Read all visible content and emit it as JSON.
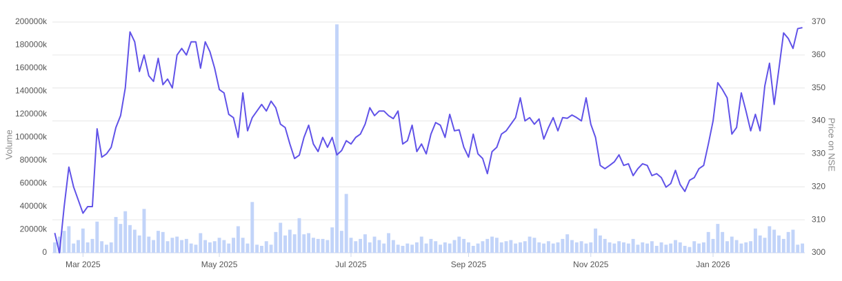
{
  "chart_data": {
    "type": "combo",
    "y_label": "Volume",
    "y2_label": "Price on NSE",
    "grid": "y2",
    "ylim": [
      0,
      200000
    ],
    "yticks": [
      0,
      {
        "value": 20000,
        "label": "20000k"
      },
      {
        "value": 40000,
        "label": "40000k"
      },
      {
        "value": 60000,
        "label": "60000k"
      },
      {
        "value": 80000,
        "label": "80000k"
      },
      {
        "value": 100000,
        "label": "100000k"
      },
      {
        "value": 120000,
        "label": "120000k"
      },
      {
        "value": 140000,
        "label": "140000k"
      },
      {
        "value": 160000,
        "label": "160000k"
      },
      {
        "value": 180000,
        "label": "180000k"
      },
      {
        "value": 200000,
        "label": "200000k"
      }
    ],
    "y2lim": [
      300,
      370
    ],
    "y2ticks": [
      300,
      310,
      320,
      330,
      340,
      350,
      360,
      370
    ],
    "categories": [
      null,
      null,
      null,
      null,
      null,
      null,
      "Mar 2025",
      null,
      null,
      null,
      null,
      null,
      null,
      null,
      null,
      null,
      null,
      null,
      null,
      null,
      null,
      null,
      null,
      null,
      null,
      null,
      null,
      null,
      null,
      null,
      null,
      null,
      null,
      null,
      null,
      "May 2025",
      null,
      null,
      null,
      null,
      null,
      null,
      null,
      null,
      null,
      null,
      null,
      null,
      null,
      null,
      null,
      null,
      null,
      null,
      null,
      null,
      null,
      null,
      null,
      null,
      null,
      null,
      null,
      "Jul 2025",
      null,
      null,
      null,
      null,
      null,
      null,
      null,
      null,
      null,
      null,
      null,
      null,
      null,
      null,
      null,
      null,
      null,
      null,
      null,
      null,
      null,
      null,
      null,
      null,
      "Sep 2025",
      null,
      null,
      null,
      null,
      null,
      null,
      null,
      null,
      null,
      null,
      null,
      null,
      null,
      null,
      null,
      null,
      null,
      null,
      null,
      null,
      null,
      null,
      null,
      null,
      null,
      "Nov 2025",
      null,
      null,
      null,
      null,
      null,
      null,
      null,
      null,
      null,
      null,
      null,
      null,
      null,
      null,
      null,
      null,
      null,
      null,
      null,
      null,
      null,
      null,
      null,
      null,
      null,
      "Jan 2026",
      null,
      null,
      null,
      null,
      null,
      null,
      null,
      null,
      null,
      null,
      null,
      null,
      null,
      null,
      null,
      null,
      null,
      null,
      null
    ],
    "series": [
      {
        "type": "bar",
        "color": "#c2d4f9",
        "values": [
          9000,
          14000,
          19000,
          23000,
          8000,
          11000,
          21000,
          9000,
          12000,
          27000,
          10000,
          7000,
          9000,
          31000,
          25000,
          36000,
          24000,
          20000,
          15000,
          38000,
          14000,
          11000,
          19000,
          18000,
          10000,
          13000,
          14000,
          11000,
          12000,
          8000,
          7000,
          17000,
          11000,
          9000,
          10000,
          13000,
          11000,
          8000,
          13000,
          23000,
          13000,
          8000,
          44000,
          7000,
          6000,
          10000,
          7000,
          18000,
          26000,
          15000,
          20000,
          16000,
          30000,
          16000,
          17000,
          13000,
          12000,
          12000,
          11000,
          22000,
          198000,
          19000,
          51000,
          13000,
          10000,
          12000,
          16000,
          9000,
          14000,
          11000,
          8000,
          17000,
          11000,
          7000,
          6000,
          8000,
          7000,
          9000,
          14000,
          8000,
          12000,
          10000,
          7000,
          9000,
          8000,
          11000,
          14000,
          12000,
          9000,
          6000,
          8000,
          10000,
          12000,
          14000,
          13000,
          9000,
          10000,
          11000,
          8000,
          9000,
          10000,
          14000,
          13000,
          9000,
          8000,
          10000,
          8000,
          9000,
          12000,
          16000,
          11000,
          9000,
          10000,
          8000,
          9000,
          21000,
          15000,
          12000,
          9000,
          8000,
          10000,
          9000,
          8000,
          12000,
          7000,
          9000,
          8000,
          10000,
          6000,
          9000,
          7000,
          8000,
          11000,
          9000,
          6000,
          5000,
          10000,
          8000,
          9000,
          18000,
          12000,
          25000,
          18000,
          10000,
          14000,
          11000,
          8000,
          9000,
          10000,
          21000,
          15000,
          13000,
          23000,
          20000,
          15000,
          12000,
          18000,
          20000,
          7000,
          8000
        ]
      },
      {
        "type": "line",
        "axis": "y2",
        "color": "#6052e8",
        "values": [
          306,
          300,
          314,
          326,
          320,
          316,
          312,
          314,
          314,
          337.6,
          329,
          330,
          332,
          338,
          341.6,
          350,
          367,
          364,
          355,
          360,
          353.7,
          352,
          359,
          351,
          352.7,
          350,
          360,
          362,
          360,
          364,
          364,
          356,
          364,
          361,
          356,
          349.5,
          348.5,
          342,
          341,
          335,
          348.5,
          337,
          341,
          343,
          345,
          343,
          346,
          344,
          339,
          338,
          333,
          328.6,
          329.6,
          335,
          338.7,
          333,
          330.7,
          335,
          332,
          335,
          329.7,
          331,
          334,
          333,
          335,
          336,
          339,
          344,
          341.6,
          343,
          343,
          341.6,
          340.7,
          343,
          333,
          334,
          338.7,
          330.7,
          333,
          330,
          336,
          339.5,
          338.7,
          335,
          342,
          337,
          337.3,
          332,
          329,
          336,
          330,
          328.6,
          324,
          330.7,
          332,
          336,
          337,
          339,
          341,
          347,
          340,
          341,
          339,
          340.6,
          334.5,
          338,
          341,
          337,
          341,
          340.8,
          341.8,
          341,
          340,
          347,
          339,
          335,
          326.5,
          325.5,
          326.5,
          327.6,
          329.7,
          326.5,
          327,
          323.4,
          325.5,
          327,
          326.5,
          323.4,
          324,
          322.8,
          319.9,
          321,
          325,
          320.7,
          318.6,
          322,
          322.8,
          325.5,
          326.5,
          333,
          340,
          351.6,
          349.5,
          347,
          336,
          338,
          348.5,
          343,
          337,
          342,
          337,
          350.6,
          357.5,
          345,
          355.8,
          366.7,
          365,
          362,
          368,
          368.3
        ]
      }
    ]
  }
}
